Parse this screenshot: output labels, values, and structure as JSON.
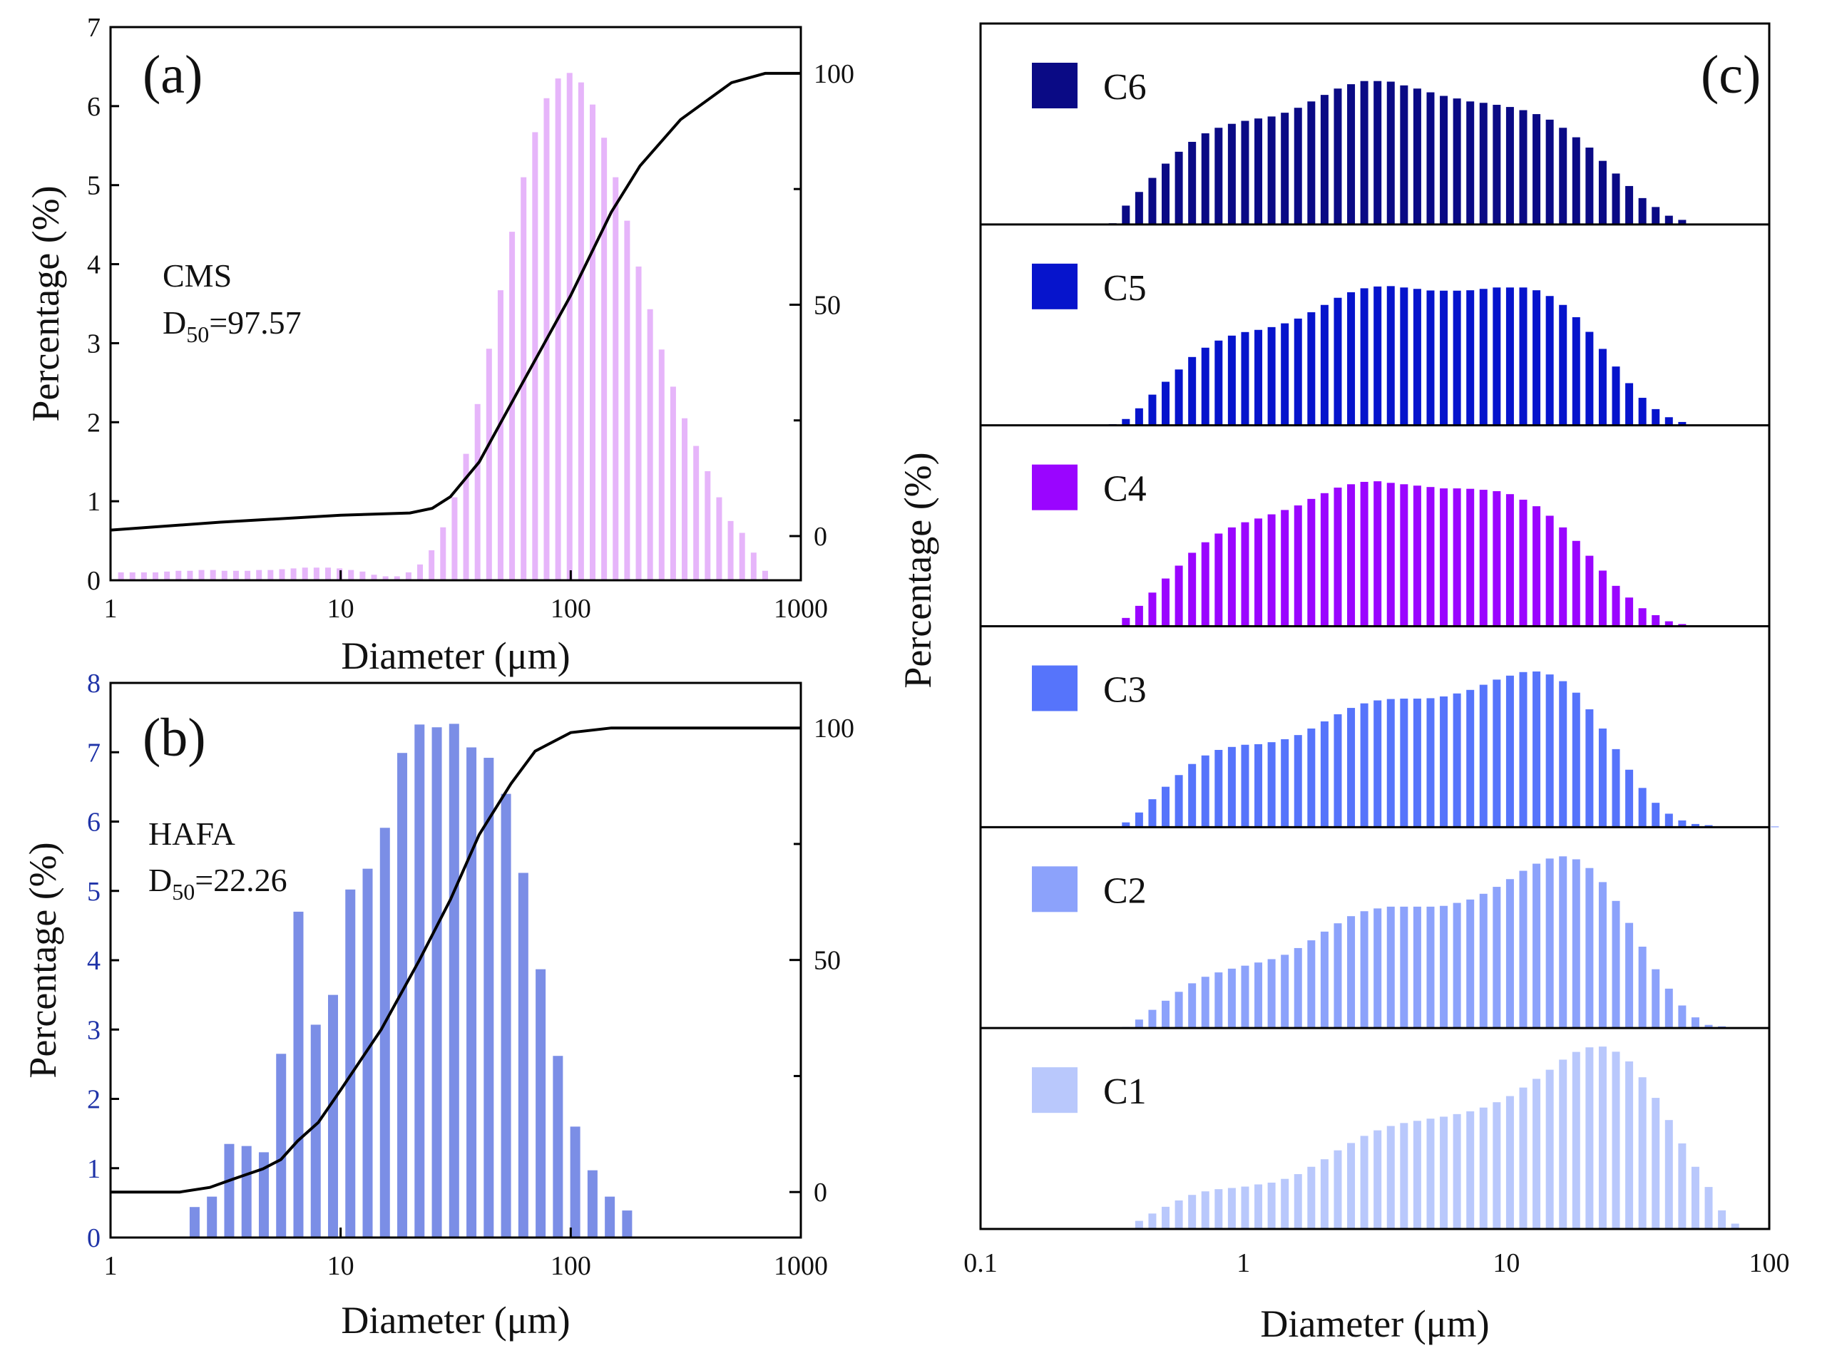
{
  "chart_data": [
    {
      "id": "a",
      "type": "bar",
      "panel_label": "(a)",
      "sample": "CMS",
      "d50_prefix": "D",
      "d50_sub": "50",
      "d50_value": "=97.57",
      "xlabel": "Diameter (μm)",
      "ylabel": "Percentage (%)",
      "xscale": "log",
      "xlim": [
        1,
        1000
      ],
      "xticks": [
        "1",
        "10",
        "100",
        "1000"
      ],
      "ylim": [
        0,
        7
      ],
      "yticks": [
        "0",
        "1",
        "2",
        "3",
        "4",
        "5",
        "6",
        "7"
      ],
      "y2lim": [
        -9.55,
        110
      ],
      "y2ticks": [
        "0",
        "50",
        "100"
      ],
      "bar_color": "#e6b5fa",
      "bar_x_start": 1.11,
      "bar_x_ratio": 1.122,
      "values": [
        0.1,
        0.1,
        0.1,
        0.1,
        0.11,
        0.12,
        0.12,
        0.13,
        0.13,
        0.12,
        0.12,
        0.12,
        0.13,
        0.13,
        0.14,
        0.15,
        0.16,
        0.16,
        0.16,
        0.15,
        0.13,
        0.11,
        0.07,
        0.05,
        0.05,
        0.1,
        0.2,
        0.38,
        0.67,
        1.05,
        1.6,
        2.23,
        2.93,
        3.67,
        4.41,
        5.1,
        5.67,
        6.1,
        6.35,
        6.42,
        6.3,
        6.02,
        5.6,
        5.1,
        4.55,
        3.97,
        3.43,
        2.92,
        2.45,
        2.05,
        1.7,
        1.38,
        1.05,
        0.75,
        0.6,
        0.35,
        0.12
      ],
      "cumulative": {
        "x": [
          1,
          3,
          10,
          20,
          25,
          30,
          40,
          60,
          100,
          150,
          200,
          300,
          500,
          700,
          1000
        ],
        "y": [
          1.3,
          3,
          4.5,
          5,
          6,
          8.5,
          16,
          32,
          52,
          70,
          80,
          90,
          98,
          100,
          100
        ]
      }
    },
    {
      "id": "b",
      "type": "bar",
      "panel_label": "(b)",
      "sample": "HAFA",
      "d50_prefix": "D",
      "d50_sub": "50",
      "d50_value": "=22.26",
      "xlabel": "Diameter (μm)",
      "ylabel": "Percentage (%)",
      "xscale": "log",
      "xlim": [
        1,
        1000
      ],
      "xticks": [
        "1",
        "10",
        "100",
        "1000"
      ],
      "ylim": [
        0,
        8
      ],
      "yticks": [
        "0",
        "1",
        "2",
        "3",
        "4",
        "5",
        "6",
        "7",
        "8"
      ],
      "y2lim": [
        -9.8,
        109.7
      ],
      "y2ticks": [
        "0",
        "50",
        "100"
      ],
      "bar_color": "#7b8ee6",
      "bar_x_start": 2.32,
      "bar_x_ratio": 1.189,
      "values": [
        0.44,
        0.59,
        1.35,
        1.32,
        1.23,
        2.65,
        4.7,
        3.07,
        3.5,
        5.02,
        5.32,
        5.91,
        6.99,
        7.4,
        7.36,
        7.41,
        7.07,
        6.92,
        6.4,
        5.26,
        3.87,
        2.62,
        1.6,
        0.97,
        0.59,
        0.39
      ],
      "cumulative": {
        "x": [
          1,
          2,
          2.7,
          3.5,
          4.6,
          5.5,
          6.5,
          8,
          10,
          15,
          22,
          30,
          40,
          55,
          70,
          100,
          150,
          1000
        ],
        "y": [
          0,
          0,
          1,
          3,
          5,
          7,
          11,
          15,
          22,
          35,
          50,
          63,
          77,
          88,
          95,
          99,
          100,
          100
        ]
      }
    },
    {
      "id": "c",
      "type": "bar",
      "panel_label": "(c)",
      "xlabel": "Diameter (μm)",
      "ylabel": "Percentage (%)",
      "xscale": "log",
      "xlim": [
        0.1,
        100
      ],
      "xticks": [
        "0.1",
        "1",
        "10",
        "100"
      ],
      "ylim_relative": [
        0,
        1
      ],
      "bar_x_start": 0.318,
      "bar_x_ratio": 1.123,
      "series": [
        {
          "name": "C6",
          "color": "#0a0a85",
          "start_index": 0,
          "values": [
            0.006,
            0.095,
            0.164,
            0.235,
            0.307,
            0.367,
            0.417,
            0.46,
            0.488,
            0.508,
            0.523,
            0.535,
            0.545,
            0.564,
            0.589,
            0.621,
            0.654,
            0.686,
            0.708,
            0.724,
            0.724,
            0.721,
            0.702,
            0.686,
            0.667,
            0.649,
            0.636,
            0.621,
            0.614,
            0.604,
            0.593,
            0.577,
            0.557,
            0.529,
            0.488,
            0.44,
            0.388,
            0.321,
            0.257,
            0.194,
            0.133,
            0.088,
            0.044,
            0.023,
            0.004
          ]
        },
        {
          "name": "C5",
          "color": "#0614cc",
          "start_index": 0,
          "values": [
            0.006,
            0.032,
            0.086,
            0.155,
            0.22,
            0.282,
            0.345,
            0.392,
            0.428,
            0.453,
            0.471,
            0.482,
            0.496,
            0.515,
            0.539,
            0.571,
            0.608,
            0.644,
            0.672,
            0.692,
            0.701,
            0.703,
            0.696,
            0.689,
            0.681,
            0.68,
            0.68,
            0.682,
            0.689,
            0.696,
            0.696,
            0.696,
            0.682,
            0.653,
            0.608,
            0.546,
            0.472,
            0.386,
            0.297,
            0.213,
            0.139,
            0.082,
            0.041,
            0.017,
            0.002
          ]
        },
        {
          "name": "C4",
          "color": "#9a05ff",
          "start_index": 0,
          "values": [
            0.002,
            0.042,
            0.103,
            0.17,
            0.241,
            0.306,
            0.371,
            0.424,
            0.468,
            0.499,
            0.525,
            0.544,
            0.565,
            0.587,
            0.61,
            0.643,
            0.672,
            0.7,
            0.717,
            0.729,
            0.732,
            0.724,
            0.717,
            0.71,
            0.703,
            0.696,
            0.696,
            0.694,
            0.689,
            0.682,
            0.667,
            0.639,
            0.606,
            0.558,
            0.499,
            0.431,
            0.356,
            0.281,
            0.204,
            0.145,
            0.091,
            0.056,
            0.025,
            0.011,
            0.002
          ]
        },
        {
          "name": "C3",
          "color": "#5674fb",
          "start_index": 0,
          "values": [
            0.002,
            0.024,
            0.074,
            0.141,
            0.204,
            0.263,
            0.319,
            0.362,
            0.39,
            0.405,
            0.416,
            0.419,
            0.429,
            0.444,
            0.465,
            0.498,
            0.534,
            0.57,
            0.602,
            0.625,
            0.64,
            0.647,
            0.649,
            0.649,
            0.651,
            0.66,
            0.675,
            0.693,
            0.719,
            0.745,
            0.765,
            0.783,
            0.786,
            0.771,
            0.737,
            0.679,
            0.595,
            0.498,
            0.394,
            0.29,
            0.198,
            0.123,
            0.068,
            0.034,
            0.016,
            0.01,
            0.003,
            0.003,
            0.003,
            0.003,
            0.003
          ]
        },
        {
          "name": "C2",
          "color": "#8ca2fb",
          "start_index": 1,
          "values": [
            0.006,
            0.043,
            0.092,
            0.138,
            0.183,
            0.226,
            0.259,
            0.281,
            0.3,
            0.315,
            0.331,
            0.348,
            0.37,
            0.404,
            0.443,
            0.487,
            0.529,
            0.565,
            0.59,
            0.604,
            0.613,
            0.613,
            0.613,
            0.613,
            0.617,
            0.632,
            0.649,
            0.678,
            0.713,
            0.752,
            0.794,
            0.83,
            0.856,
            0.867,
            0.852,
            0.808,
            0.737,
            0.642,
            0.531,
            0.411,
            0.297,
            0.199,
            0.114,
            0.054,
            0.016,
            0.009
          ]
        },
        {
          "name": "C1",
          "color": "#b9c8fc",
          "start_index": 1,
          "values": [
            0.002,
            0.041,
            0.078,
            0.112,
            0.144,
            0.172,
            0.19,
            0.201,
            0.207,
            0.214,
            0.225,
            0.234,
            0.253,
            0.277,
            0.314,
            0.352,
            0.397,
            0.434,
            0.47,
            0.498,
            0.52,
            0.535,
            0.546,
            0.557,
            0.567,
            0.58,
            0.594,
            0.613,
            0.64,
            0.671,
            0.714,
            0.758,
            0.804,
            0.855,
            0.894,
            0.917,
            0.921,
            0.895,
            0.846,
            0.766,
            0.662,
            0.55,
            0.432,
            0.314,
            0.212,
            0.094,
            0.027
          ]
        }
      ]
    }
  ]
}
